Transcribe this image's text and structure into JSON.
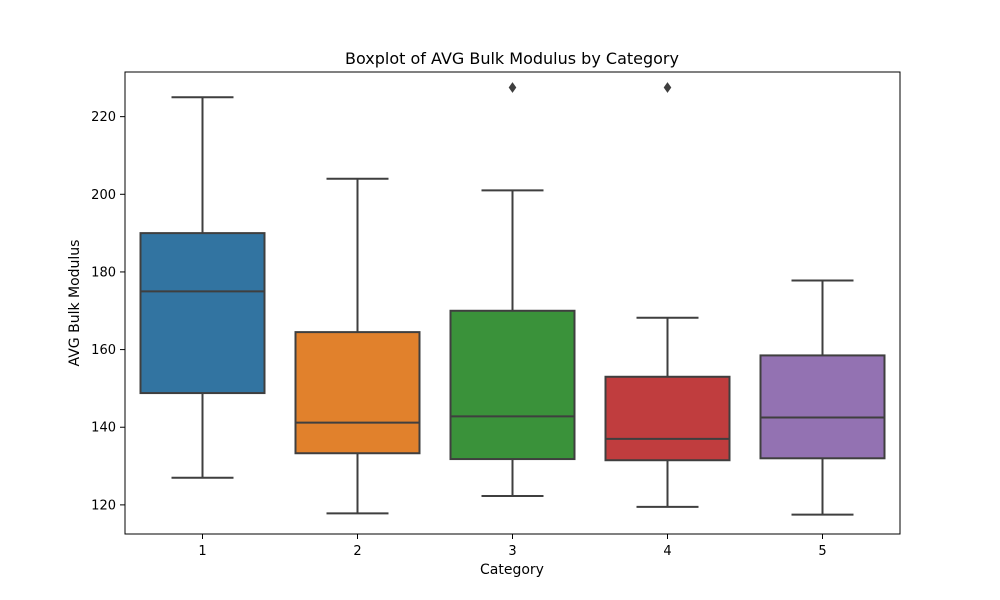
{
  "chart_data": {
    "type": "boxplot",
    "title": "Boxplot of AVG Bulk Modulus by Category",
    "xlabel": "Category",
    "ylabel": "AVG Bulk Modulus",
    "categories": [
      "1",
      "2",
      "3",
      "4",
      "5"
    ],
    "ylim": [
      112.5,
      231.5
    ],
    "yticks": [
      120,
      140,
      160,
      180,
      200,
      220
    ],
    "grid": false,
    "boxes": [
      {
        "category": "1",
        "whisker_low": 127.0,
        "q1": 148.8,
        "median": 175.0,
        "q3": 190.0,
        "whisker_high": 225.0,
        "outliers": [],
        "color": "#3274a1"
      },
      {
        "category": "2",
        "whisker_low": 117.8,
        "q1": 133.3,
        "median": 141.2,
        "q3": 164.5,
        "whisker_high": 204.0,
        "outliers": [],
        "color": "#e1812c"
      },
      {
        "category": "3",
        "whisker_low": 122.3,
        "q1": 131.8,
        "median": 142.8,
        "q3": 170.0,
        "whisker_high": 201.0,
        "outliers": [
          227.5
        ],
        "color": "#3a923a"
      },
      {
        "category": "4",
        "whisker_low": 119.5,
        "q1": 131.5,
        "median": 137.0,
        "q3": 153.0,
        "whisker_high": 168.2,
        "outliers": [
          227.5
        ],
        "color": "#c03d3e"
      },
      {
        "category": "5",
        "whisker_low": 117.5,
        "q1": 132.0,
        "median": 142.5,
        "q3": 158.5,
        "whisker_high": 177.8,
        "outliers": [],
        "color": "#9372b2"
      }
    ]
  }
}
